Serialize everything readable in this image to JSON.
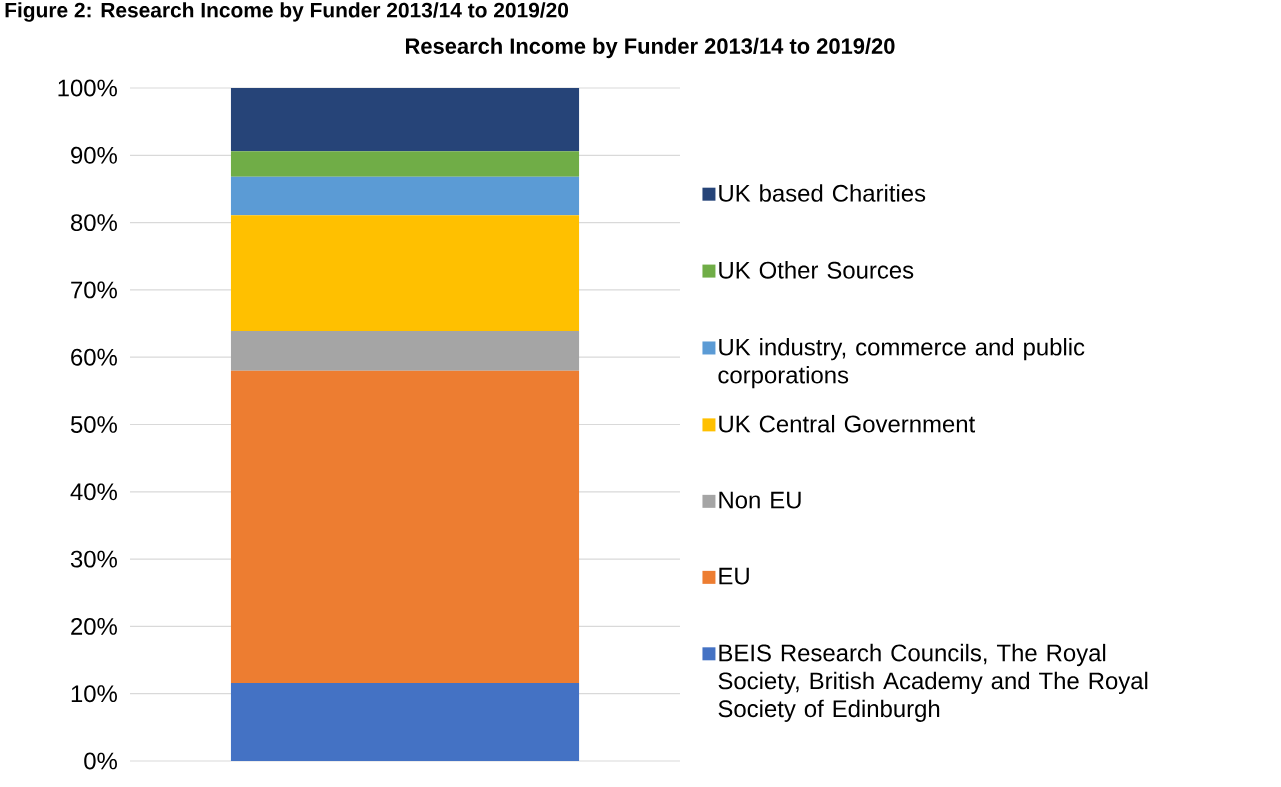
{
  "chart_data": {
    "type": "bar",
    "stacked": true,
    "title": "Research Income by Funder 2013/14 to 2019/20",
    "annotations": [
      "Figure 2: Research Income by Funder 2013/14 to 2019/20"
    ],
    "categories": [
      null
    ],
    "series": [
      {
        "name": "BEIS Research Councils, The Royal Society, British Academy and The Royal Society of Edinburgh",
        "color": "#4472c4",
        "values": [
          11.6
        ]
      },
      {
        "name": "EU",
        "color": "#ed7d31",
        "values": [
          46.4
        ]
      },
      {
        "name": "Non EU",
        "color": "#a5a5a5",
        "values": [
          5.9
        ]
      },
      {
        "name": "UK Central Government",
        "color": "#ffc000",
        "values": [
          17.2
        ]
      },
      {
        "name": "UK industry, commerce and public corporations",
        "color": "#5b9bd5",
        "values": [
          5.7
        ]
      },
      {
        "name": "UK Other Sources",
        "color": "#70ad47",
        "values": [
          3.8
        ]
      },
      {
        "name": "UK based Charities",
        "color": "#264478",
        "values": [
          9.4
        ]
      }
    ],
    "ylim": [
      0,
      100
    ],
    "yticks": [
      {
        "value": 0,
        "label": "0%"
      },
      {
        "value": 10,
        "label": "10%"
      },
      {
        "value": 20,
        "label": "20%"
      },
      {
        "value": 30,
        "label": "30%"
      },
      {
        "value": 40,
        "label": "40%"
      },
      {
        "value": 50,
        "label": "50%"
      },
      {
        "value": 60,
        "label": "60%"
      },
      {
        "value": 70,
        "label": "70%"
      },
      {
        "value": 80,
        "label": "80%"
      },
      {
        "value": 90,
        "label": "90%"
      },
      {
        "value": 100,
        "label": "100%"
      }
    ],
    "grid": "y",
    "legend": "right"
  }
}
